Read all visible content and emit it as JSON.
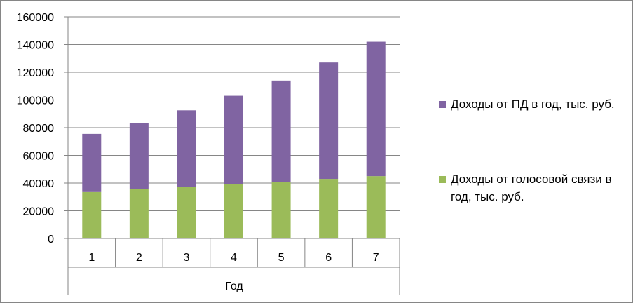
{
  "chart_data": {
    "type": "bar",
    "stacked": true,
    "categories": [
      "1",
      "2",
      "3",
      "4",
      "5",
      "6",
      "7"
    ],
    "series": [
      {
        "name": "Доходы от голосовой связи в год, тыс. руб.",
        "color": "#9BBB59",
        "values": [
          33500,
          35500,
          37000,
          39000,
          41000,
          43000,
          45000
        ]
      },
      {
        "name": "Доходы от ПД в год, тыс. руб.",
        "color": "#8064A2",
        "values": [
          42000,
          48000,
          55500,
          64000,
          73000,
          84000,
          97000
        ]
      }
    ],
    "xlabel": "Год",
    "ylabel": "",
    "ylim": [
      0,
      160000
    ],
    "yticks": [
      "0",
      "20000",
      "40000",
      "60000",
      "80000",
      "100000",
      "120000",
      "140000",
      "160000"
    ],
    "grid": true,
    "legend_position": "right"
  }
}
